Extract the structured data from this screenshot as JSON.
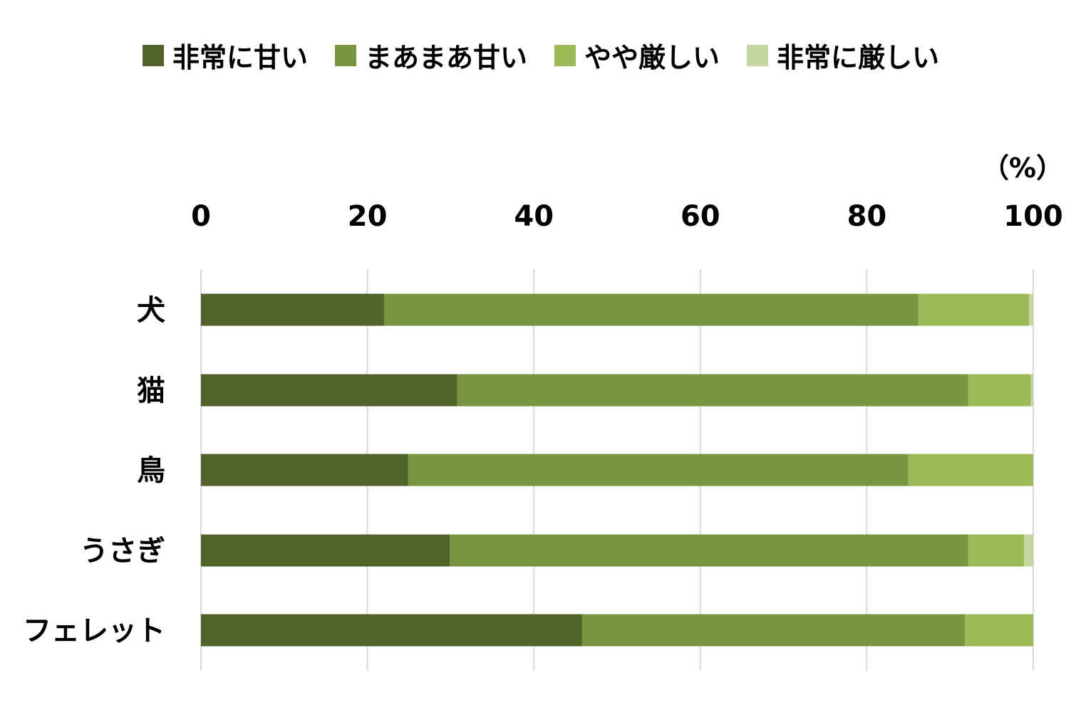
{
  "chart_data": {
    "type": "bar",
    "orientation": "horizontal",
    "stacked": true,
    "unit_label": "（%）",
    "categories": [
      "犬",
      "猫",
      "鳥",
      "うさぎ",
      "フェレット"
    ],
    "series": [
      {
        "name": "非常に甘い",
        "color": "#51632a",
        "values": [
          22.0,
          30.8,
          24.9,
          29.9,
          45.8
        ]
      },
      {
        "name": "まあまあ甘い",
        "color": "#79953f",
        "values": [
          64.2,
          61.4,
          60.1,
          62.3,
          46.0
        ]
      },
      {
        "name": "やや厳しい",
        "color": "#9bbb59",
        "values": [
          13.3,
          7.5,
          15.0,
          6.7,
          8.2
        ]
      },
      {
        "name": "非常に厳しい",
        "color": "#c4d7a0",
        "values": [
          0.5,
          0.3,
          0.0,
          1.1,
          0.0
        ]
      }
    ],
    "xlim": [
      0,
      100
    ],
    "xticks": [
      0,
      20,
      40,
      60,
      80,
      100
    ],
    "grid": true,
    "legend_position": "top"
  }
}
